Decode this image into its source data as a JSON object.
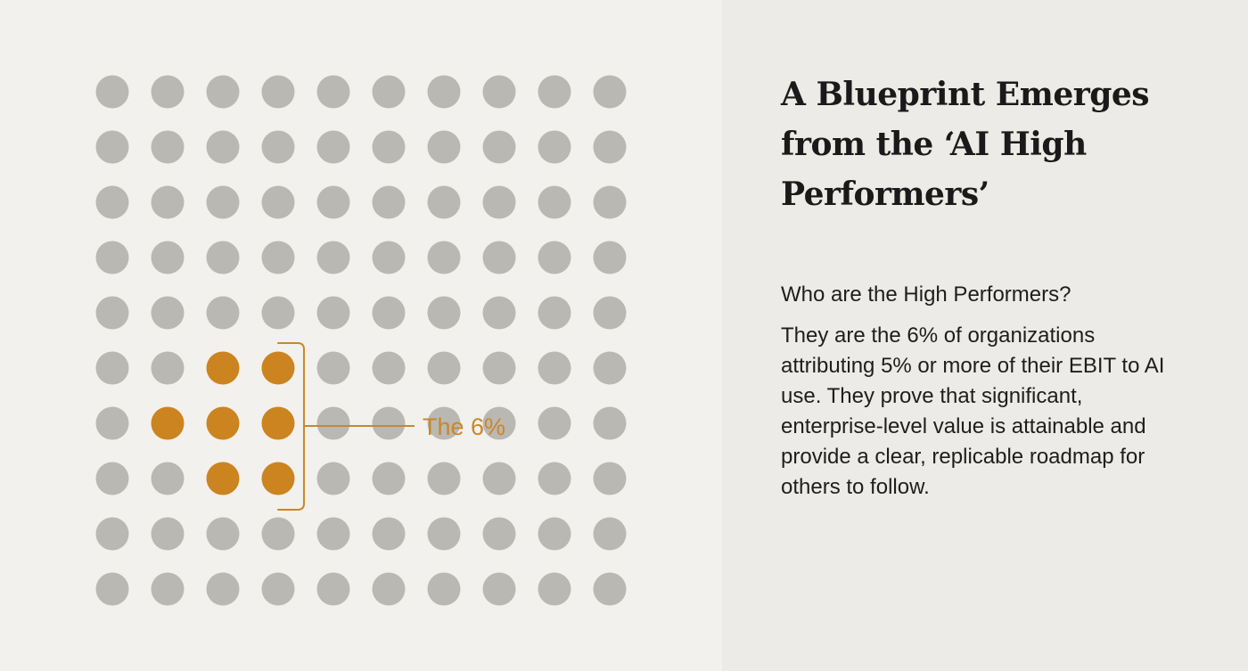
{
  "chart_data": {
    "type": "waffle",
    "grid_rows": 10,
    "grid_cols": 10,
    "total_units": 100,
    "highlighted_units": 6,
    "highlighted_percent": 6,
    "annotation": "The 6%",
    "colors": {
      "base_dot": "#bab8b3",
      "highlight_dot": "#cc8420",
      "annotation": "#c9872a"
    }
  },
  "headline": {
    "title": "A Blueprint Emerges from the ‘AI High Performers’"
  },
  "description": {
    "heading": "Who are the High Performers?",
    "body": "They are the 6% of organizations attributing 5% or more of their EBIT to AI use. They prove that significant, enterprise-level value is attainable and provide a clear, replicable roadmap for others to follow."
  },
  "colors": {
    "left_background": "#f2f1ed",
    "right_background": "#ecebe7",
    "text": "#1e1e1e"
  }
}
